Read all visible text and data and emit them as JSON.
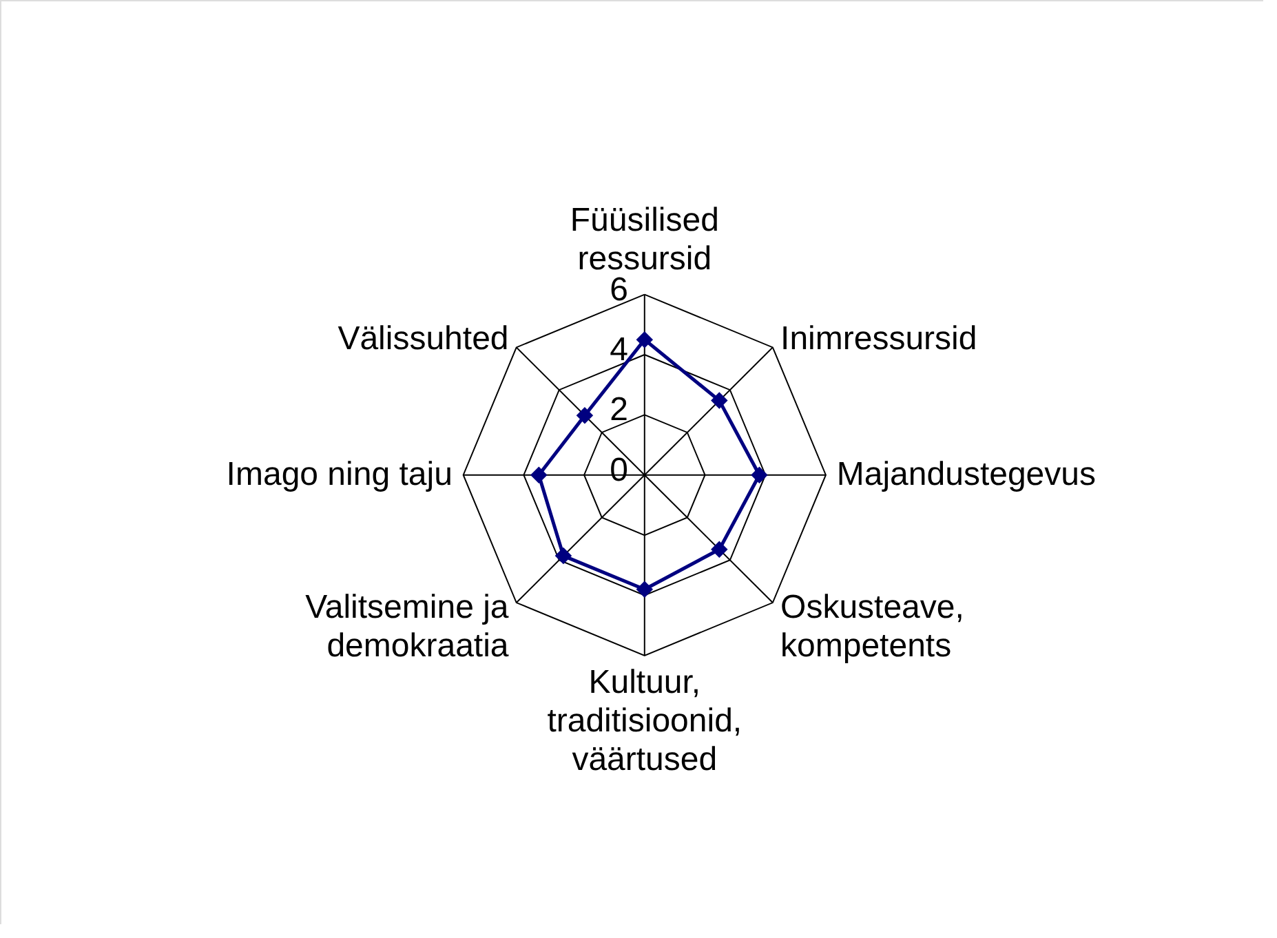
{
  "chart_data": {
    "type": "radar",
    "categories": [
      "Füüsilised\nressursid",
      "Inimressursid",
      "Majandustegevus",
      "Oskusteave,\nkompetents",
      "Kultuur,\ntraditisioonid,\nväärtused",
      "Valitsemine ja\ndemokraatia",
      "Imago ning taju",
      "Välissuhted"
    ],
    "series": [
      {
        "color": "#000080",
        "values": [
          4.5,
          3.5,
          3.8,
          3.5,
          3.8,
          3.8,
          3.5,
          2.8
        ]
      }
    ],
    "ylim": [
      0,
      6
    ],
    "yticks": [
      0,
      2,
      4,
      6
    ],
    "grid": true,
    "marker": "diamond",
    "line_style": "solid"
  }
}
